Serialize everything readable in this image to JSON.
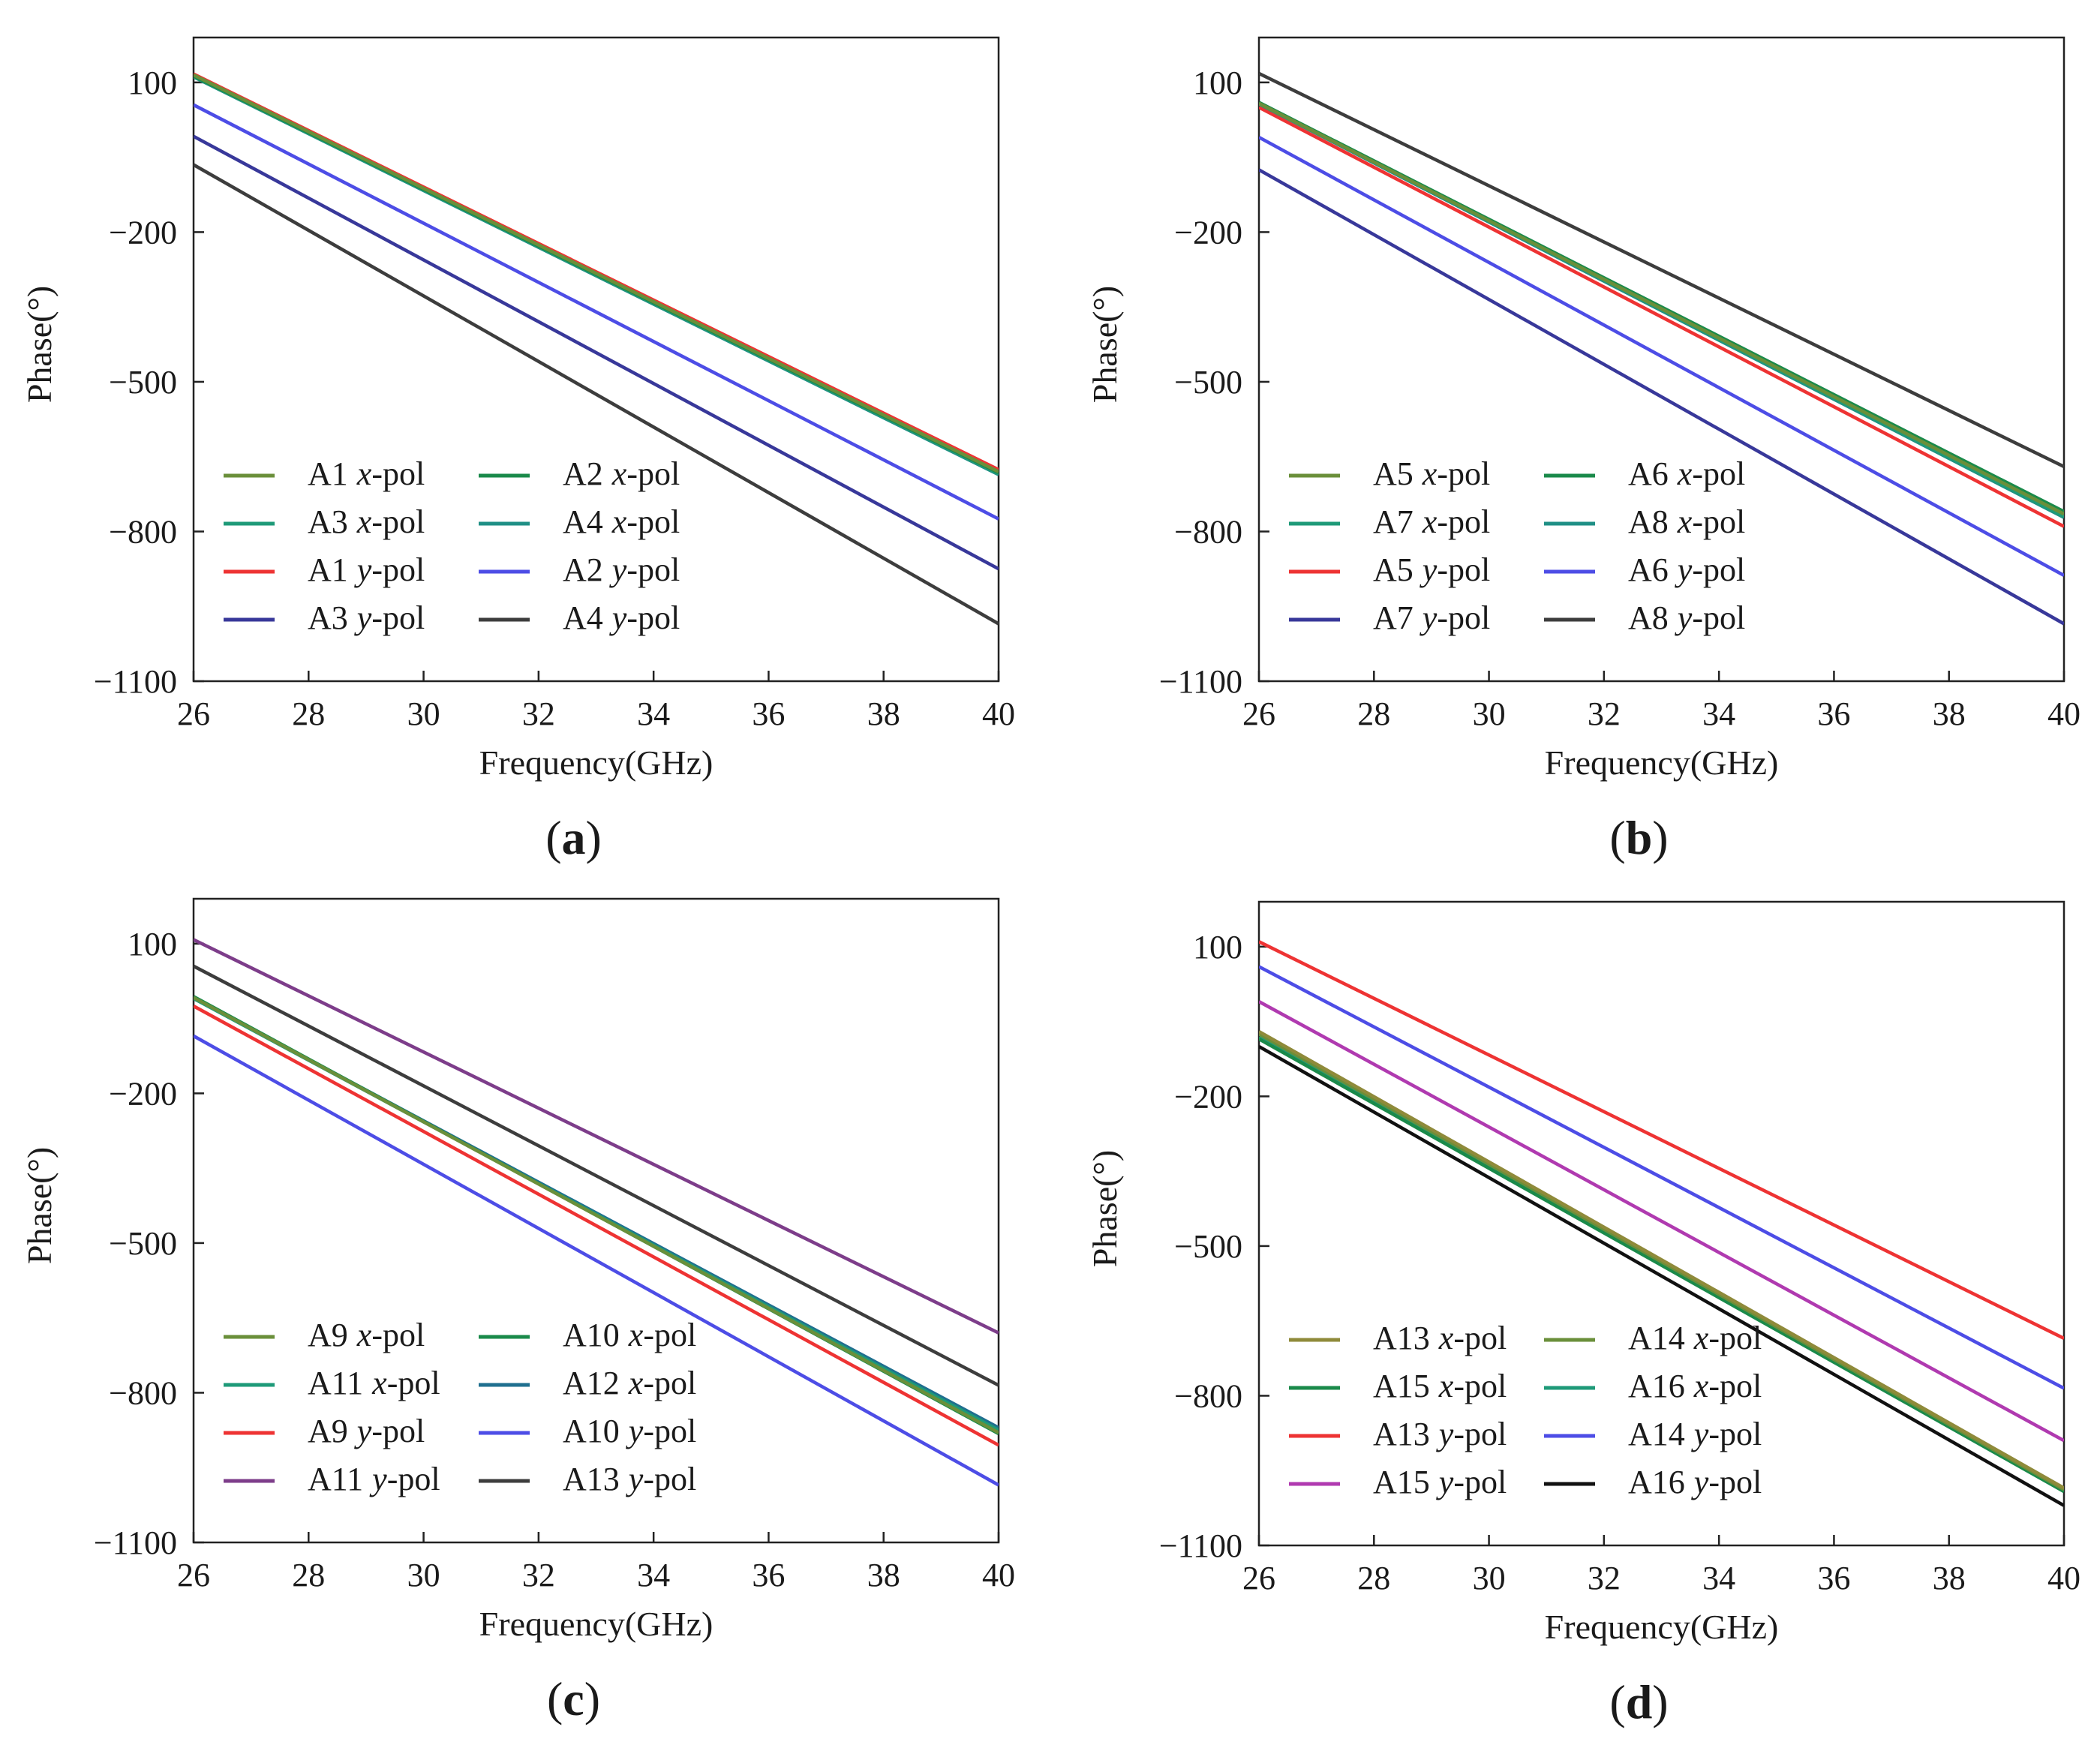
{
  "chart_data": [
    {
      "type": "line",
      "panel_label": "a",
      "xlabel": "Frequency(GHz)",
      "ylabel": "Phase(°)",
      "xlim": [
        26,
        40
      ],
      "ylim": [
        -1100,
        190
      ],
      "xticks": [
        26,
        28,
        30,
        32,
        34,
        36,
        38,
        40
      ],
      "yticks": [
        100,
        -200,
        -500,
        -800,
        -1100
      ],
      "ytick_labels": [
        "100",
        "−200",
        "−500",
        "−800",
        "−1100"
      ],
      "legend_position": "bottom-left",
      "series": [
        {
          "name": "A1",
          "pol": "x",
          "color": "#6a8f3a",
          "x": [
            26,
            40
          ],
          "y": [
            115,
            -680
          ]
        },
        {
          "name": "A2",
          "pol": "x",
          "color": "#1a8a4a",
          "x": [
            26,
            40
          ],
          "y": [
            113,
            -682
          ]
        },
        {
          "name": "A3",
          "pol": "x",
          "color": "#1e9a78",
          "x": [
            26,
            40
          ],
          "y": [
            112,
            -684
          ]
        },
        {
          "name": "A4",
          "pol": "x",
          "color": "#1f8f85",
          "x": [
            26,
            40
          ],
          "y": [
            111,
            -686
          ]
        },
        {
          "name": "A1",
          "pol": "y",
          "color": "#ee3333",
          "x": [
            26,
            40
          ],
          "y": [
            117,
            -676
          ]
        },
        {
          "name": "A2",
          "pol": "y",
          "color": "#4d4de6",
          "x": [
            26,
            40
          ],
          "y": [
            55,
            -775
          ]
        },
        {
          "name": "A3",
          "pol": "y",
          "color": "#38389a",
          "x": [
            26,
            40
          ],
          "y": [
            -8,
            -875
          ]
        },
        {
          "name": "A4",
          "pol": "y",
          "color": "#3d3d3d",
          "x": [
            26,
            40
          ],
          "y": [
            -65,
            -985
          ]
        }
      ]
    },
    {
      "type": "line",
      "panel_label": "b",
      "xlabel": "Frequency(GHz)",
      "ylabel": "Phase(°)",
      "xlim": [
        26,
        40
      ],
      "ylim": [
        -1100,
        190
      ],
      "xticks": [
        26,
        28,
        30,
        32,
        34,
        36,
        38,
        40
      ],
      "yticks": [
        100,
        -200,
        -500,
        -800,
        -1100
      ],
      "ytick_labels": [
        "100",
        "−200",
        "−500",
        "−800",
        "−1100"
      ],
      "legend_position": "bottom-left",
      "series": [
        {
          "name": "A5",
          "pol": "x",
          "color": "#6a8f3a",
          "x": [
            26,
            40
          ],
          "y": [
            58,
            -765
          ]
        },
        {
          "name": "A6",
          "pol": "x",
          "color": "#1a8a4a",
          "x": [
            26,
            40
          ],
          "y": [
            60,
            -760
          ]
        },
        {
          "name": "A7",
          "pol": "x",
          "color": "#1e9a78",
          "x": [
            26,
            40
          ],
          "y": [
            59,
            -770
          ]
        },
        {
          "name": "A8",
          "pol": "x",
          "color": "#1f8f85",
          "x": [
            26,
            40
          ],
          "y": [
            57,
            -772
          ]
        },
        {
          "name": "A5",
          "pol": "y",
          "color": "#ee3333",
          "x": [
            26,
            40
          ],
          "y": [
            50,
            -790
          ]
        },
        {
          "name": "A6",
          "pol": "y",
          "color": "#4d4de6",
          "x": [
            26,
            40
          ],
          "y": [
            -10,
            -888
          ]
        },
        {
          "name": "A7",
          "pol": "y",
          "color": "#38389a",
          "x": [
            26,
            40
          ],
          "y": [
            -75,
            -985
          ]
        },
        {
          "name": "A8",
          "pol": "y",
          "color": "#3d3d3d",
          "x": [
            26,
            40
          ],
          "y": [
            118,
            -670
          ]
        }
      ]
    },
    {
      "type": "line",
      "panel_label": "c",
      "xlabel": "Frequency(GHz)",
      "ylabel": "Phase(°)",
      "xlim": [
        26,
        40
      ],
      "ylim": [
        -1100,
        190
      ],
      "xticks": [
        26,
        28,
        30,
        32,
        34,
        36,
        38,
        40
      ],
      "yticks": [
        100,
        -200,
        -500,
        -800,
        -1100
      ],
      "ytick_labels": [
        "100",
        "−200",
        "−500",
        "−800",
        "−1100"
      ],
      "legend_position": "bottom-left",
      "series": [
        {
          "name": "A9",
          "pol": "x",
          "color": "#6a8f3a",
          "x": [
            26,
            40
          ],
          "y": [
            -8,
            -880
          ]
        },
        {
          "name": "A10",
          "pol": "x",
          "color": "#1a8a4a",
          "x": [
            26,
            40
          ],
          "y": [
            -6,
            -882
          ]
        },
        {
          "name": "A11",
          "pol": "x",
          "color": "#1e9a78",
          "x": [
            26,
            40
          ],
          "y": [
            -10,
            -875
          ]
        },
        {
          "name": "A12",
          "pol": "x",
          "color": "#1f6f8f",
          "x": [
            26,
            40
          ],
          "y": [
            -9,
            -870
          ]
        },
        {
          "name": "A9",
          "pol": "y",
          "color": "#ee3333",
          "x": [
            26,
            40
          ],
          "y": [
            -25,
            -905
          ]
        },
        {
          "name": "A10",
          "pol": "y",
          "color": "#4d4de6",
          "x": [
            26,
            40
          ],
          "y": [
            -85,
            -985
          ]
        },
        {
          "name": "A11",
          "pol": "y",
          "color": "#7d3d8a",
          "x": [
            26,
            40
          ],
          "y": [
            108,
            -680
          ]
        },
        {
          "name": "A13",
          "pol": "y",
          "color": "#3d3d3d",
          "x": [
            26,
            40
          ],
          "y": [
            55,
            -785
          ]
        }
      ]
    },
    {
      "type": "line",
      "panel_label": "d",
      "xlabel": "Frequency(GHz)",
      "ylabel": "Phase(°)",
      "xlim": [
        26,
        40
      ],
      "ylim": [
        -1100,
        190
      ],
      "xticks": [
        26,
        28,
        30,
        32,
        34,
        36,
        38,
        40
      ],
      "yticks": [
        100,
        -200,
        -500,
        -800,
        -1100
      ],
      "ytick_labels": [
        "100",
        "−200",
        "−500",
        "−800",
        "−1100"
      ],
      "legend_position": "bottom-left",
      "series": [
        {
          "name": "A13",
          "pol": "x",
          "color": "#8f8a3a",
          "x": [
            26,
            40
          ],
          "y": [
            -70,
            -985
          ]
        },
        {
          "name": "A14",
          "pol": "x",
          "color": "#6a8f3a",
          "x": [
            26,
            40
          ],
          "y": [
            -75,
            -988
          ]
        },
        {
          "name": "A15",
          "pol": "x",
          "color": "#1a8a4a",
          "x": [
            26,
            40
          ],
          "y": [
            -85,
            -992
          ]
        },
        {
          "name": "A16",
          "pol": "x",
          "color": "#1e9a78",
          "x": [
            26,
            40
          ],
          "y": [
            -82,
            -990
          ]
        },
        {
          "name": "A13",
          "pol": "y",
          "color": "#ee3333",
          "x": [
            26,
            40
          ],
          "y": [
            110,
            -685
          ]
        },
        {
          "name": "A14",
          "pol": "y",
          "color": "#4d4de6",
          "x": [
            26,
            40
          ],
          "y": [
            60,
            -785
          ]
        },
        {
          "name": "A15",
          "pol": "y",
          "color": "#b03ab0",
          "x": [
            26,
            40
          ],
          "y": [
            -10,
            -890
          ]
        },
        {
          "name": "A16",
          "pol": "y",
          "color": "#111111",
          "x": [
            26,
            40
          ],
          "y": [
            -100,
            -1020
          ]
        }
      ]
    }
  ]
}
